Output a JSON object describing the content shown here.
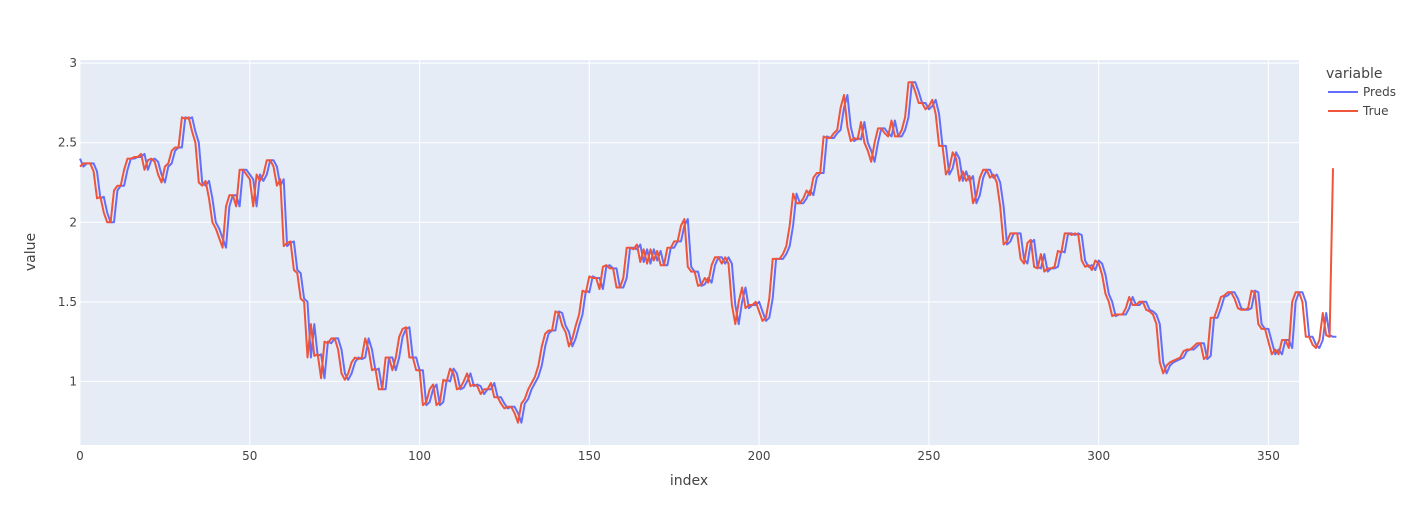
{
  "chart_data": {
    "type": "line",
    "title": "",
    "xlabel": "index",
    "ylabel": "value",
    "xlim": [
      0,
      359
    ],
    "ylim": [
      0.6,
      3.02
    ],
    "x_ticks": [
      0,
      50,
      100,
      150,
      200,
      250,
      300,
      350
    ],
    "x_tick_labels": [
      "0",
      "50",
      "100",
      "150",
      "200",
      "250",
      "300",
      "350"
    ],
    "y_ticks": [
      1,
      1.5,
      2,
      2.5,
      3
    ],
    "y_tick_labels": [
      "1",
      "1.5",
      "2",
      "2.5",
      "3"
    ],
    "grid": true,
    "legend": {
      "title": "variable",
      "placement": "top-right-outside"
    },
    "plot_background": "#e5ecf6",
    "series": [
      {
        "name": "Preds",
        "color": "#636efa",
        "values": [
          2.4,
          2.35,
          2.37,
          2.37,
          2.37,
          2.32,
          2.15,
          2.16,
          2.06,
          2.0,
          2.0,
          2.2,
          2.23,
          2.23,
          2.33,
          2.4,
          2.4,
          2.41,
          2.41,
          2.43,
          2.33,
          2.39,
          2.4,
          2.38,
          2.3,
          2.25,
          2.35,
          2.37,
          2.45,
          2.47,
          2.47,
          2.66,
          2.65,
          2.66,
          2.57,
          2.5,
          2.25,
          2.23,
          2.26,
          2.15,
          2.0,
          1.96,
          1.9,
          1.84,
          2.1,
          2.17,
          2.17,
          2.1,
          2.33,
          2.33,
          2.3,
          2.27,
          2.1,
          2.3,
          2.26,
          2.3,
          2.39,
          2.39,
          2.35,
          2.23,
          2.27,
          1.85,
          1.87,
          1.88,
          1.7,
          1.68,
          1.52,
          1.5,
          1.15,
          1.36,
          1.16,
          1.17,
          1.02,
          1.25,
          1.24,
          1.27,
          1.27,
          1.2,
          1.05,
          1.01,
          1.05,
          1.12,
          1.15,
          1.14,
          1.15,
          1.27,
          1.2,
          1.07,
          1.08,
          0.95,
          0.95,
          1.15,
          1.15,
          1.07,
          1.15,
          1.28,
          1.33,
          1.34,
          1.15,
          1.15,
          1.07,
          1.07,
          0.85,
          0.87,
          0.95,
          0.98,
          0.85,
          0.87,
          1.01,
          1.0,
          1.08,
          1.05,
          0.95,
          0.96,
          1.0,
          1.05,
          0.97,
          0.98,
          0.97,
          0.92,
          0.95,
          0.95,
          0.99,
          0.9,
          0.9,
          0.86,
          0.83,
          0.84,
          0.84,
          0.8,
          0.74,
          0.86,
          0.89,
          0.95,
          0.99,
          1.03,
          1.1,
          1.22,
          1.3,
          1.32,
          1.32,
          1.44,
          1.43,
          1.35,
          1.31,
          1.22,
          1.27,
          1.35,
          1.42,
          1.57,
          1.56,
          1.66,
          1.65,
          1.65,
          1.58,
          1.72,
          1.73,
          1.71,
          1.71,
          1.59,
          1.59,
          1.65,
          1.84,
          1.84,
          1.83,
          1.86,
          1.75,
          1.83,
          1.74,
          1.83,
          1.76,
          1.82,
          1.73,
          1.73,
          1.84,
          1.84,
          1.88,
          1.88,
          1.98,
          2.02,
          1.72,
          1.69,
          1.69,
          1.6,
          1.61,
          1.65,
          1.62,
          1.73,
          1.78,
          1.78,
          1.74,
          1.78,
          1.74,
          1.48,
          1.36,
          1.5,
          1.59,
          1.46,
          1.48,
          1.48,
          1.5,
          1.44,
          1.38,
          1.4,
          1.52,
          1.77,
          1.77,
          1.77,
          1.8,
          1.85,
          1.98,
          2.18,
          2.12,
          2.12,
          2.15,
          2.2,
          2.17,
          2.28,
          2.31,
          2.31,
          2.54,
          2.53,
          2.53,
          2.56,
          2.58,
          2.72,
          2.8,
          2.6,
          2.51,
          2.53,
          2.52,
          2.63,
          2.5,
          2.45,
          2.38,
          2.5,
          2.59,
          2.59,
          2.56,
          2.54,
          2.64,
          2.54,
          2.54,
          2.58,
          2.66,
          2.88,
          2.88,
          2.82,
          2.75,
          2.75,
          2.71,
          2.73,
          2.77,
          2.68,
          2.48,
          2.48,
          2.3,
          2.34,
          2.44,
          2.4,
          2.26,
          2.32,
          2.26,
          2.29,
          2.12,
          2.17,
          2.28,
          2.33,
          2.33,
          2.28,
          2.3,
          2.25,
          2.1,
          1.86,
          1.88,
          1.93,
          1.93,
          1.93,
          1.77,
          1.74,
          1.87,
          1.89,
          1.72,
          1.71,
          1.8,
          1.69,
          1.71,
          1.71,
          1.72,
          1.82,
          1.81,
          1.93,
          1.93,
          1.92,
          1.93,
          1.92,
          1.76,
          1.72,
          1.73,
          1.7,
          1.76,
          1.74,
          1.67,
          1.55,
          1.5,
          1.41,
          1.42,
          1.42,
          1.42,
          1.46,
          1.53,
          1.48,
          1.48,
          1.5,
          1.5,
          1.45,
          1.44,
          1.42,
          1.36,
          1.12,
          1.05,
          1.1,
          1.12,
          1.13,
          1.14,
          1.15,
          1.19,
          1.2,
          1.2,
          1.22,
          1.24,
          1.24,
          1.14,
          1.16,
          1.4,
          1.4,
          1.46,
          1.53,
          1.54,
          1.56,
          1.56,
          1.52,
          1.46,
          1.45,
          1.45,
          1.46,
          1.57,
          1.56,
          1.36,
          1.33,
          1.33,
          1.25,
          1.17,
          1.2,
          1.17,
          1.26,
          1.26,
          1.21,
          1.5,
          1.56,
          1.56,
          1.5,
          1.28,
          1.28,
          1.23,
          1.21,
          1.26,
          1.43,
          1.29,
          1.28,
          1.28
        ]
      },
      {
        "name": "True",
        "color": "#ef553b",
        "values": [
          2.35,
          2.37,
          2.37,
          2.37,
          2.32,
          2.15,
          2.16,
          2.06,
          2.0,
          2.0,
          2.2,
          2.23,
          2.23,
          2.33,
          2.4,
          2.4,
          2.41,
          2.41,
          2.43,
          2.33,
          2.39,
          2.4,
          2.38,
          2.3,
          2.25,
          2.35,
          2.37,
          2.45,
          2.47,
          2.47,
          2.66,
          2.65,
          2.66,
          2.57,
          2.5,
          2.25,
          2.23,
          2.26,
          2.15,
          2.0,
          1.96,
          1.9,
          1.84,
          2.1,
          2.17,
          2.17,
          2.1,
          2.33,
          2.33,
          2.3,
          2.27,
          2.1,
          2.3,
          2.26,
          2.3,
          2.39,
          2.39,
          2.35,
          2.23,
          2.27,
          1.85,
          1.87,
          1.88,
          1.7,
          1.68,
          1.52,
          1.5,
          1.15,
          1.36,
          1.16,
          1.17,
          1.02,
          1.25,
          1.24,
          1.27,
          1.27,
          1.2,
          1.05,
          1.01,
          1.05,
          1.12,
          1.15,
          1.14,
          1.15,
          1.27,
          1.2,
          1.07,
          1.08,
          0.95,
          0.95,
          1.15,
          1.15,
          1.07,
          1.15,
          1.28,
          1.33,
          1.34,
          1.15,
          1.15,
          1.07,
          1.07,
          0.85,
          0.87,
          0.95,
          0.98,
          0.85,
          0.87,
          1.01,
          1.0,
          1.08,
          1.05,
          0.95,
          0.96,
          1.0,
          1.05,
          0.97,
          0.98,
          0.97,
          0.92,
          0.95,
          0.95,
          0.99,
          0.9,
          0.9,
          0.86,
          0.83,
          0.84,
          0.84,
          0.8,
          0.74,
          0.86,
          0.89,
          0.95,
          0.99,
          1.03,
          1.1,
          1.22,
          1.3,
          1.32,
          1.32,
          1.44,
          1.43,
          1.35,
          1.31,
          1.22,
          1.27,
          1.35,
          1.42,
          1.57,
          1.56,
          1.66,
          1.65,
          1.65,
          1.58,
          1.72,
          1.73,
          1.71,
          1.71,
          1.59,
          1.59,
          1.65,
          1.84,
          1.84,
          1.83,
          1.86,
          1.75,
          1.83,
          1.74,
          1.83,
          1.76,
          1.82,
          1.73,
          1.73,
          1.84,
          1.84,
          1.88,
          1.88,
          1.98,
          2.02,
          1.72,
          1.69,
          1.69,
          1.6,
          1.61,
          1.65,
          1.62,
          1.73,
          1.78,
          1.78,
          1.74,
          1.78,
          1.74,
          1.48,
          1.36,
          1.5,
          1.59,
          1.46,
          1.48,
          1.48,
          1.5,
          1.44,
          1.38,
          1.4,
          1.52,
          1.77,
          1.77,
          1.77,
          1.8,
          1.85,
          1.98,
          2.18,
          2.12,
          2.12,
          2.15,
          2.2,
          2.17,
          2.28,
          2.31,
          2.31,
          2.54,
          2.53,
          2.53,
          2.56,
          2.58,
          2.72,
          2.8,
          2.6,
          2.51,
          2.53,
          2.52,
          2.63,
          2.5,
          2.45,
          2.38,
          2.5,
          2.59,
          2.59,
          2.56,
          2.54,
          2.64,
          2.54,
          2.54,
          2.58,
          2.66,
          2.88,
          2.88,
          2.82,
          2.75,
          2.75,
          2.71,
          2.73,
          2.77,
          2.68,
          2.48,
          2.48,
          2.3,
          2.34,
          2.44,
          2.4,
          2.26,
          2.32,
          2.26,
          2.29,
          2.12,
          2.17,
          2.28,
          2.33,
          2.33,
          2.28,
          2.3,
          2.25,
          2.1,
          1.86,
          1.88,
          1.93,
          1.93,
          1.93,
          1.77,
          1.74,
          1.87,
          1.89,
          1.72,
          1.71,
          1.8,
          1.69,
          1.71,
          1.71,
          1.72,
          1.82,
          1.81,
          1.93,
          1.93,
          1.92,
          1.93,
          1.92,
          1.76,
          1.72,
          1.73,
          1.7,
          1.76,
          1.74,
          1.67,
          1.55,
          1.5,
          1.41,
          1.42,
          1.42,
          1.42,
          1.46,
          1.53,
          1.48,
          1.48,
          1.5,
          1.5,
          1.45,
          1.44,
          1.42,
          1.36,
          1.12,
          1.05,
          1.1,
          1.12,
          1.13,
          1.14,
          1.15,
          1.19,
          1.2,
          1.2,
          1.22,
          1.24,
          1.24,
          1.14,
          1.16,
          1.4,
          1.4,
          1.46,
          1.53,
          1.54,
          1.56,
          1.56,
          1.52,
          1.46,
          1.45,
          1.45,
          1.46,
          1.57,
          1.56,
          1.36,
          1.33,
          1.33,
          1.25,
          1.17,
          1.2,
          1.17,
          1.26,
          1.26,
          1.21,
          1.5,
          1.56,
          1.56,
          1.5,
          1.28,
          1.28,
          1.23,
          1.21,
          1.26,
          1.43,
          1.29,
          1.28,
          2.34
        ]
      }
    ]
  }
}
